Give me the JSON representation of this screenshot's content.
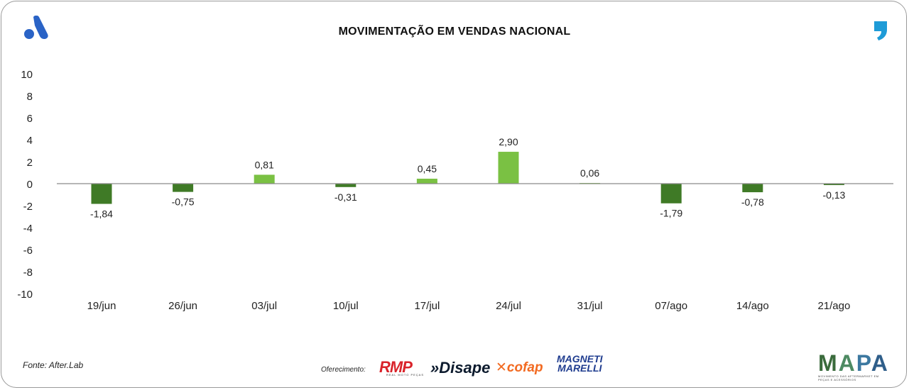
{
  "header": {
    "title": "MOVIMENTAÇÃO EM VENDAS NACIONAL"
  },
  "colors": {
    "positive": "#7ac143",
    "negative": "#3f7a26",
    "axis": "#8a8a8a"
  },
  "chart_data": {
    "type": "bar",
    "title": "MOVIMENTAÇÃO EM VENDAS NACIONAL",
    "categories": [
      "19/jun",
      "26/jun",
      "03/jul",
      "10/jul",
      "17/jul",
      "24/jul",
      "31/jul",
      "07/ago",
      "14/ago",
      "21/ago"
    ],
    "values": [
      -1.84,
      -0.75,
      0.81,
      -0.31,
      0.45,
      2.9,
      0.06,
      -1.79,
      -0.78,
      -0.13
    ],
    "value_labels": [
      "-1,84",
      "-0,75",
      "0,81",
      "-0,31",
      "0,45",
      "2,90",
      "0,06",
      "-1,79",
      "-0,78",
      "-0,13"
    ],
    "ylim": [
      -10,
      10
    ],
    "yticks": [
      10,
      8,
      6,
      4,
      2,
      0,
      -2,
      -4,
      -6,
      -8,
      -10
    ],
    "xlabel": "",
    "ylabel": "",
    "grid": false
  },
  "footer": {
    "source": "Fonte: After.Lab",
    "offered_by": "Oferecimento:",
    "sponsors": {
      "rmp": "RMP",
      "rmp_sub": "REAL MOTO PEÇAS",
      "disape": "»Disape",
      "cofap": "✕cofap",
      "marelli_line1": "MAGNETI",
      "marelli_line2": "MARELLI"
    },
    "mapa_letters": [
      "M",
      "A",
      "P",
      "A"
    ],
    "mapa_sub": "MOVIMENTO DAS AFTERMARKET EM PEÇAS E ACESSÓRIOS"
  }
}
